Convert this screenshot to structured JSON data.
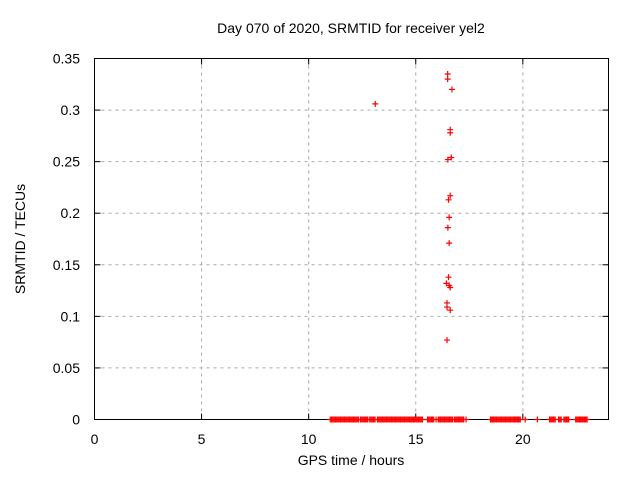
{
  "window": {
    "background": "#ffffff"
  },
  "chart_data": {
    "type": "scatter",
    "title": "Day 070 of 2020, SRMTID for receiver yel2",
    "xlabel": "GPS time / hours",
    "ylabel": "SRMTID / TECUs",
    "xlim": [
      0,
      24
    ],
    "ylim": [
      0,
      0.35
    ],
    "grid": true,
    "legend": "none",
    "marker": "plus",
    "marker_color": "#ff0000",
    "axis_color": "#000000",
    "grid_color": "#a9a9a9",
    "xticks": [
      {
        "v": 0,
        "label": "0"
      },
      {
        "v": 5,
        "label": "5"
      },
      {
        "v": 10,
        "label": "10"
      },
      {
        "v": 15,
        "label": "15"
      },
      {
        "v": 20,
        "label": "20"
      }
    ],
    "yticks": [
      {
        "v": 0,
        "label": "0"
      },
      {
        "v": 0.05,
        "label": "0.05"
      },
      {
        "v": 0.1,
        "label": "0.1"
      },
      {
        "v": 0.15,
        "label": "0.15"
      },
      {
        "v": 0.2,
        "label": "0.2"
      },
      {
        "v": 0.25,
        "label": "0.25"
      },
      {
        "v": 0.3,
        "label": "0.3"
      },
      {
        "v": 0.35,
        "label": "0.35"
      }
    ],
    "series": [
      {
        "name": "SRMTID",
        "points": [
          [
            13.11,
            0.306
          ],
          [
            16.49,
            0.335
          ],
          [
            16.49,
            0.33
          ],
          [
            16.69,
            0.32
          ],
          [
            16.61,
            0.281
          ],
          [
            16.61,
            0.278
          ],
          [
            16.66,
            0.254
          ],
          [
            16.5,
            0.252
          ],
          [
            16.61,
            0.217
          ],
          [
            16.53,
            0.213
          ],
          [
            16.56,
            0.196
          ],
          [
            16.5,
            0.186
          ],
          [
            16.56,
            0.171
          ],
          [
            16.53,
            0.138
          ],
          [
            16.43,
            0.132
          ],
          [
            16.56,
            0.13
          ],
          [
            16.61,
            0.128
          ],
          [
            16.46,
            0.113
          ],
          [
            16.46,
            0.109
          ],
          [
            16.61,
            0.106
          ],
          [
            16.46,
            0.077
          ]
        ]
      }
    ],
    "baseline_value": 0,
    "baseline_runs": [
      [
        11.01,
        12.33
      ],
      [
        12.42,
        12.76
      ],
      [
        12.85,
        13.1
      ],
      [
        13.21,
        15.31
      ],
      [
        15.55,
        15.78
      ],
      [
        16.1,
        16.72
      ],
      [
        16.81,
        17.24
      ],
      [
        18.49,
        18.6
      ],
      [
        18.65,
        19.61
      ],
      [
        19.66,
        19.77
      ],
      [
        19.82,
        19.88
      ],
      [
        21.25,
        21.51
      ],
      [
        21.67,
        21.79
      ],
      [
        21.92,
        22.14
      ],
      [
        22.47,
        22.7
      ],
      [
        22.73,
        22.89
      ],
      [
        22.93,
        23.0
      ]
    ],
    "baseline_singles": [
      15.84,
      15.95,
      16.05,
      17.35,
      20.11,
      20.68
    ]
  }
}
